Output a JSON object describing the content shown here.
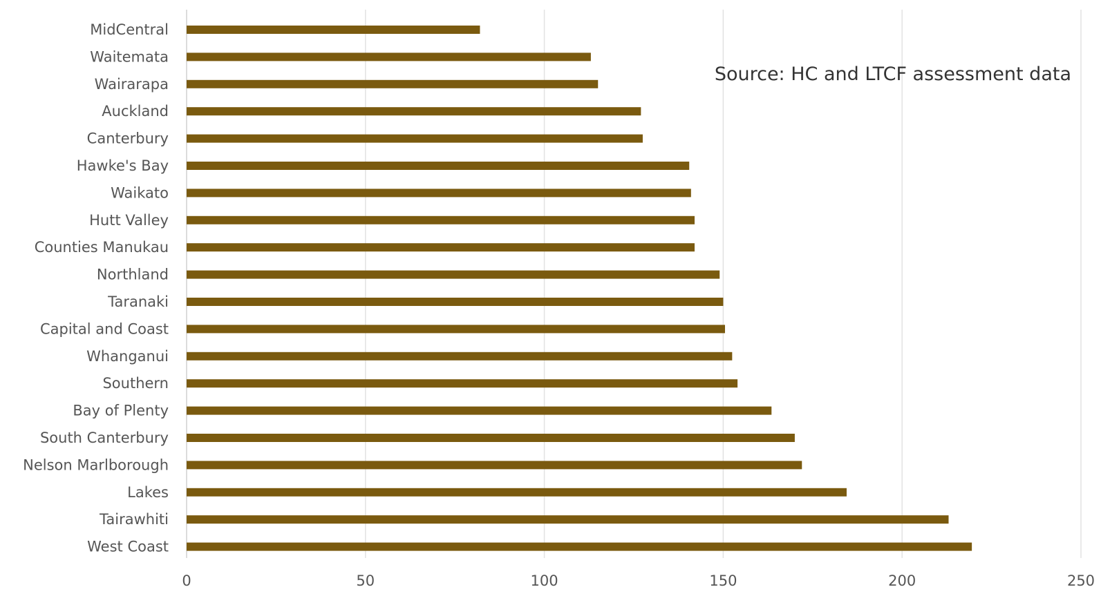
{
  "chart_data": {
    "type": "bar",
    "orientation": "horizontal",
    "categories": [
      "MidCentral",
      "Waitemata",
      "Wairarapa",
      "Auckland",
      "Canterbury",
      "Hawke's Bay",
      "Waikato",
      "Hutt Valley",
      "Counties Manukau",
      "Northland",
      "Taranaki",
      "Capital and Coast",
      "Whanganui",
      "Southern",
      "Bay of Plenty",
      "South Canterbury",
      "Nelson Marlborough",
      "Lakes",
      "Tairawhiti",
      "West Coast"
    ],
    "values": [
      82,
      113,
      115,
      127,
      127.5,
      140.5,
      141,
      142,
      142,
      149,
      150,
      150.5,
      152.5,
      154,
      163.5,
      170,
      172,
      184.5,
      213,
      219.5
    ],
    "xlim": [
      0,
      250
    ],
    "xticks": [
      "0",
      "50",
      "100",
      "150",
      "200",
      "250"
    ],
    "grid": "vertical",
    "bar_color": "#7a5a0f",
    "annotation": "Source: HC and LTCF assessment data"
  }
}
